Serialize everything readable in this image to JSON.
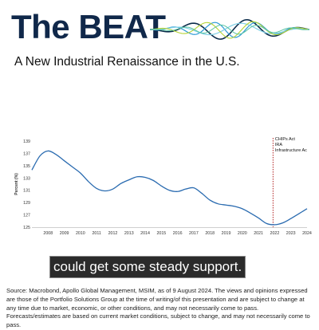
{
  "header": {
    "brand": "The BEAT",
    "title": "A New Industrial Renaissance in the U.S.",
    "wave_colors": [
      "#0b2b4a",
      "#2e9bd6",
      "#7fd0e6",
      "#b5d334",
      "#5ac4a0"
    ]
  },
  "chart_data": {
    "type": "line",
    "title": "",
    "xlabel": "",
    "ylabel": "Percent (%)",
    "xlim": [
      2007,
      2024
    ],
    "ylim": [
      125,
      139
    ],
    "x_ticks": [
      2008,
      2009,
      2010,
      2011,
      2012,
      2013,
      2014,
      2015,
      2016,
      2017,
      2018,
      2019,
      2020,
      2021,
      2022,
      2023,
      2024
    ],
    "y_ticks": [
      125,
      127,
      129,
      131,
      133,
      135,
      137,
      139
    ],
    "grid": false,
    "series": [
      {
        "color": "#2a6bb0",
        "x": [
          2007.0,
          2007.5,
          2008.0,
          2008.5,
          2009.0,
          2009.5,
          2010.0,
          2010.5,
          2011.0,
          2011.5,
          2012.0,
          2012.5,
          2013.0,
          2013.5,
          2014.0,
          2014.5,
          2015.0,
          2015.5,
          2016.0,
          2016.5,
          2017.0,
          2017.5,
          2018.0,
          2018.5,
          2019.0,
          2019.5,
          2020.0,
          2020.5,
          2021.0,
          2021.5,
          2022.0,
          2022.5,
          2023.0,
          2023.5,
          2024.0
        ],
        "y": [
          134.3,
          136.6,
          137.4,
          136.8,
          135.8,
          134.8,
          133.8,
          132.4,
          131.3,
          130.9,
          131.2,
          132.1,
          132.7,
          133.2,
          133.1,
          132.6,
          131.7,
          131.0,
          130.8,
          131.2,
          131.4,
          130.5,
          129.4,
          128.8,
          128.6,
          128.4,
          128.0,
          127.3,
          126.5,
          125.6,
          125.4,
          125.7,
          126.4,
          127.2,
          128.0
        ]
      }
    ],
    "annotations": [
      {
        "x": 2021.9,
        "text": [
          "CHIPs Act",
          "IRA",
          "Infrastructure Ac"
        ],
        "line_color": "#b22222",
        "line_style": "dotted"
      }
    ]
  },
  "caption": {
    "subtitle": "could get some steady support."
  },
  "footer": {
    "source": "Source: Macrobond, Apollo Global Management, MSIM, as of 9 August 2024. The views and opinions expressed are those of the Portfolio Solutions Group at the time of writing/of this presentation and are subject to change at any time due to market, economic, or other conditions, and may not necessarily come to pass. Forecasts/estimates are based on current market conditions, subject to change, and may not necessarily come to pass."
  }
}
